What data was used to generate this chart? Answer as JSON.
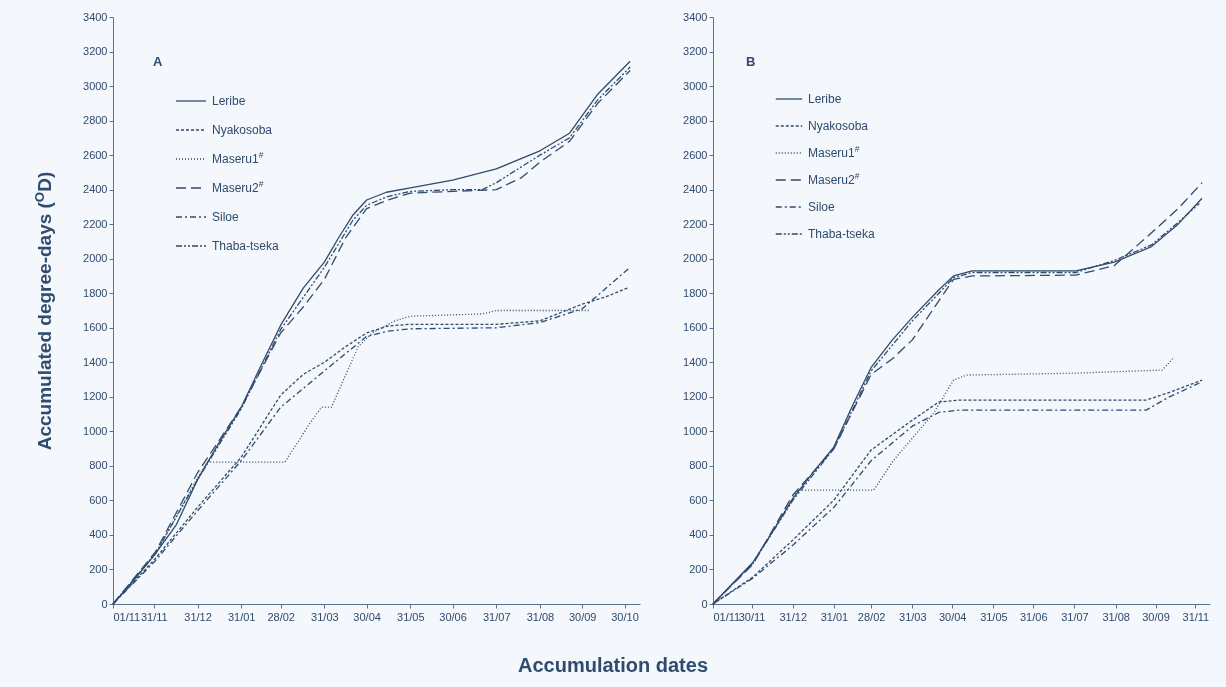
{
  "chart_data": [
    {
      "type": "line",
      "title": "A",
      "xlabel": "Accumulation dates",
      "ylabel": "Accumulated degree-days ($^{O}$D)",
      "xlim": [
        "2000-11-01",
        "2001-11-10"
      ],
      "ylim": [
        0,
        3400
      ],
      "yticks": [
        0,
        200,
        400,
        600,
        800,
        1000,
        1200,
        1400,
        1600,
        1800,
        2000,
        2200,
        2400,
        2600,
        2800,
        3000,
        3200,
        3400
      ],
      "xticks": [
        {
          "value": "2000-11-01",
          "label": "01/11"
        },
        {
          "value": "2000-11-30",
          "label": "31/11"
        },
        {
          "value": "2000-12-31",
          "label": "31/12"
        },
        {
          "value": "2001-01-31",
          "label": "31/01"
        },
        {
          "value": "2001-02-28",
          "label": "28/02"
        },
        {
          "value": "2001-03-31",
          "label": "31/03"
        },
        {
          "value": "2001-04-30",
          "label": "30/04"
        },
        {
          "value": "2001-05-31",
          "label": "31/05"
        },
        {
          "value": "2001-06-30",
          "label": "30/06"
        },
        {
          "value": "2001-07-31",
          "label": "31/07"
        },
        {
          "value": "2001-08-31",
          "label": "31/08"
        },
        {
          "value": "2001-09-30",
          "label": "30/09"
        },
        {
          "value": "2001-10-30",
          "label": "30/10"
        }
      ],
      "legend": "top left",
      "series": [
        {
          "name": "Leribe",
          "color": "#2f4b6e",
          "line_style": "solid",
          "x": [
            "2000-11-01",
            "2000-11-16",
            "2000-12-01",
            "2000-12-16",
            "2000-12-31",
            "2001-01-15",
            "2001-01-31",
            "2001-02-14",
            "2001-02-28",
            "2001-03-16",
            "2001-03-31",
            "2001-04-10",
            "2001-04-20",
            "2001-04-30",
            "2001-05-14",
            "2001-05-31",
            "2001-06-30",
            "2001-07-31",
            "2001-08-31",
            "2001-09-21",
            "2001-10-11",
            "2001-11-03"
          ],
          "values": [
            0,
            140,
            290,
            460,
            720,
            930,
            1140,
            1380,
            1615,
            1830,
            1980,
            2120,
            2250,
            2340,
            2385,
            2410,
            2455,
            2520,
            2625,
            2727,
            2953,
            3144
          ]
        },
        {
          "name": "Nyakosoba",
          "color": "#2f4b6e",
          "line_style": "dashed",
          "x": [
            "2000-11-01",
            "2000-11-16",
            "2000-12-01",
            "2000-12-31",
            "2001-01-31",
            "2001-02-14",
            "2001-02-28",
            "2001-03-16",
            "2001-03-31",
            "2001-04-15",
            "2001-04-30",
            "2001-05-15",
            "2001-05-31",
            "2001-07-31",
            "2001-08-31",
            "2001-09-30",
            "2001-10-17",
            "2001-11-01"
          ],
          "values": [
            0,
            130,
            263,
            560,
            850,
            1030,
            1210,
            1330,
            1400,
            1490,
            1570,
            1610,
            1620,
            1620,
            1640,
            1737,
            1780,
            1830
          ]
        },
        {
          "name": "Maseru1$^{#}$",
          "color": "#2f4b6e",
          "line_style": "dotted",
          "x": [
            "2000-11-01",
            "2000-12-01",
            "2000-12-31",
            "2001-01-07",
            "2001-03-03",
            "2001-03-21",
            "2001-03-29",
            "2001-04-05",
            "2001-04-24",
            "2001-05-04",
            "2001-05-20",
            "2001-05-31",
            "2001-07-21",
            "2001-07-31",
            "2001-10-05"
          ],
          "values": [
            0,
            290,
            730,
            822,
            822,
            1050,
            1140,
            1140,
            1490,
            1570,
            1640,
            1667,
            1680,
            1700,
            1700
          ]
        },
        {
          "name": "Maseru2$^{#}$",
          "color": "#2f4b6e",
          "line_style": "dashed",
          "x": [
            "2000-11-01",
            "2000-12-01",
            "2000-12-31",
            "2001-01-31",
            "2001-02-28",
            "2001-03-16",
            "2001-03-31",
            "2001-04-15",
            "2001-04-30",
            "2001-05-15",
            "2001-05-31",
            "2001-06-30",
            "2001-07-31",
            "2001-08-18",
            "2001-08-31",
            "2001-09-21",
            "2001-10-11",
            "2001-11-03"
          ],
          "values": [
            0,
            300,
            760,
            1140,
            1570,
            1720,
            1880,
            2120,
            2290,
            2340,
            2380,
            2390,
            2400,
            2470,
            2560,
            2680,
            2900,
            3090
          ]
        },
        {
          "name": "Siloe",
          "color": "#2f4b6e",
          "line_style": "dashed",
          "x": [
            "2000-11-01",
            "2000-12-01",
            "2000-12-31",
            "2001-01-31",
            "2001-02-28",
            "2001-03-31",
            "2001-04-30",
            "2001-05-15",
            "2001-05-31",
            "2001-07-31",
            "2001-08-31",
            "2001-09-30",
            "2001-10-17",
            "2001-11-03"
          ],
          "values": [
            0,
            250,
            540,
            830,
            1140,
            1350,
            1550,
            1580,
            1594,
            1600,
            1630,
            1710,
            1830,
            1950
          ]
        },
        {
          "name": "Thaba-tseka",
          "color": "#2f4b6e",
          "line_style": "dashed",
          "x": [
            "2000-11-01",
            "2000-12-01",
            "2000-12-31",
            "2001-01-31",
            "2001-02-28",
            "2001-03-31",
            "2001-04-20",
            "2001-04-30",
            "2001-05-15",
            "2001-05-31",
            "2001-06-30",
            "2001-07-21",
            "2001-07-31",
            "2001-08-31",
            "2001-09-21",
            "2001-10-11",
            "2001-11-03"
          ],
          "values": [
            0,
            290,
            720,
            1130,
            1590,
            1950,
            2220,
            2310,
            2360,
            2390,
            2400,
            2400,
            2440,
            2600,
            2700,
            2920,
            3110
          ]
        }
      ]
    },
    {
      "type": "line",
      "title": "B",
      "xlim": [
        "2000-11-01",
        "2001-11-10"
      ],
      "ylim": [
        0,
        3400
      ],
      "yticks": [
        0,
        200,
        400,
        600,
        800,
        1000,
        1200,
        1400,
        1600,
        1800,
        2000,
        2200,
        2400,
        2600,
        2800,
        3000,
        3200,
        3400
      ],
      "xticks": [
        {
          "value": "2000-11-01",
          "label": "01/11"
        },
        {
          "value": "2000-11-30",
          "label": "30/11"
        },
        {
          "value": "2000-12-31",
          "label": "31/12"
        },
        {
          "value": "2001-01-31",
          "label": "31/01"
        },
        {
          "value": "2001-02-28",
          "label": "28/02"
        },
        {
          "value": "2001-03-31",
          "label": "31/03"
        },
        {
          "value": "2001-04-30",
          "label": "30/04"
        },
        {
          "value": "2001-05-31",
          "label": "31/05"
        },
        {
          "value": "2001-06-30",
          "label": "31/06"
        },
        {
          "value": "2001-07-31",
          "label": "31/07"
        },
        {
          "value": "2001-08-31",
          "label": "31/08"
        },
        {
          "value": "2001-09-30",
          "label": "30/09"
        },
        {
          "value": "2001-10-30",
          "label": "31/11"
        }
      ],
      "legend": "top left",
      "series": [
        {
          "name": "Leribe",
          "color": "#2f4b6e",
          "line_style": "solid",
          "x": [
            "2000-11-01",
            "2000-11-16",
            "2000-12-01",
            "2000-12-16",
            "2000-12-31",
            "2001-01-15",
            "2001-01-31",
            "2001-02-14",
            "2001-02-28",
            "2001-03-16",
            "2001-03-31",
            "2001-04-20",
            "2001-05-01",
            "2001-05-15",
            "2001-08-01",
            "2001-08-30",
            "2001-09-27",
            "2001-10-17",
            "2001-11-04"
          ],
          "values": [
            0,
            120,
            240,
            420,
            610,
            760,
            910,
            1150,
            1370,
            1530,
            1660,
            1820,
            1900,
            1930,
            1930,
            1980,
            2070,
            2200,
            2350
          ]
        },
        {
          "name": "Nyakosoba",
          "color": "#2f4b6e",
          "line_style": "dashed",
          "x": [
            "2000-11-01",
            "2000-12-01",
            "2000-12-31",
            "2001-01-31",
            "2001-02-28",
            "2001-03-31",
            "2001-04-20",
            "2001-05-05",
            "2001-09-23",
            "2001-10-12",
            "2001-11-04"
          ],
          "values": [
            0,
            156,
            370,
            602,
            892,
            1065,
            1170,
            1181,
            1181,
            1230,
            1297
          ]
        },
        {
          "name": "Maseru1$^{#}$",
          "color": "#2f4b6e",
          "line_style": "dotted",
          "x": [
            "2000-11-01",
            "2000-12-01",
            "2000-12-31",
            "2001-01-04",
            "2001-03-02",
            "2001-03-17",
            "2001-04-16",
            "2001-05-01",
            "2001-05-11",
            "2001-08-01",
            "2001-10-05",
            "2001-10-14"
          ],
          "values": [
            0,
            240,
            610,
            660,
            660,
            834,
            1105,
            1297,
            1326,
            1337,
            1355,
            1430
          ]
        },
        {
          "name": "Maseru2$^{#}$",
          "color": "#2f4b6e",
          "line_style": "dashed",
          "x": [
            "2000-11-01",
            "2000-12-01",
            "2000-12-31",
            "2001-01-31",
            "2001-02-28",
            "2001-03-16",
            "2001-03-31",
            "2001-04-15",
            "2001-05-01",
            "2001-05-15",
            "2001-08-01",
            "2001-08-30",
            "2001-09-27",
            "2001-10-17",
            "2001-11-04"
          ],
          "values": [
            0,
            230,
            630,
            900,
            1330,
            1420,
            1530,
            1700,
            1880,
            1900,
            1905,
            1960,
            2150,
            2290,
            2440
          ]
        },
        {
          "name": "Siloe",
          "color": "#2f4b6e",
          "line_style": "dashed",
          "x": [
            "2000-11-01",
            "2000-12-01",
            "2000-12-31",
            "2001-01-31",
            "2001-02-28",
            "2001-03-31",
            "2001-04-20",
            "2001-05-05",
            "2001-09-23",
            "2001-10-10",
            "2001-11-02"
          ],
          "values": [
            0,
            150,
            340,
            560,
            830,
            1030,
            1110,
            1123,
            1123,
            1198,
            1280
          ]
        },
        {
          "name": "Thaba-tseka",
          "color": "#2f4b6e",
          "line_style": "dashed",
          "x": [
            "2000-11-01",
            "2000-12-01",
            "2000-12-31",
            "2001-01-31",
            "2001-02-28",
            "2001-03-31",
            "2001-04-20",
            "2001-05-01",
            "2001-05-15",
            "2001-08-01",
            "2001-08-30",
            "2001-09-27",
            "2001-10-17",
            "2001-11-02"
          ],
          "values": [
            0,
            235,
            600,
            900,
            1350,
            1640,
            1800,
            1890,
            1920,
            1920,
            1990,
            2080,
            2210,
            2320
          ]
        }
      ]
    }
  ]
}
